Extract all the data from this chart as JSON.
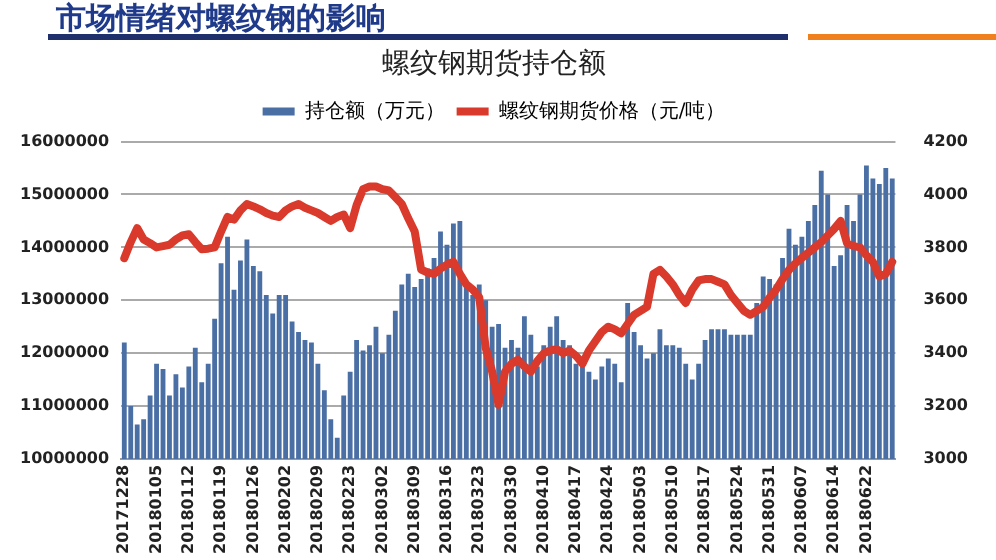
{
  "chart_data": {
    "type": "bar",
    "title": "螺纹钢期货持仓额",
    "annotations": [
      "市场情绪对螺纹钢的影响"
    ],
    "categories": [
      "20171228",
      null,
      null,
      null,
      null,
      "20180105",
      null,
      null,
      null,
      null,
      "20180112",
      null,
      null,
      null,
      null,
      "20180119",
      null,
      null,
      null,
      null,
      "20180126",
      null,
      null,
      null,
      null,
      "20180202",
      null,
      null,
      null,
      null,
      "20180209",
      null,
      null,
      null,
      null,
      "20180223",
      null,
      null,
      null,
      null,
      "20180302",
      null,
      null,
      null,
      null,
      "20180309",
      null,
      null,
      null,
      null,
      "20180316",
      null,
      null,
      null,
      null,
      "20180323",
      null,
      null,
      null,
      null,
      "20180330",
      null,
      null,
      null,
      null,
      "20180410",
      null,
      null,
      null,
      null,
      "20180417",
      null,
      null,
      null,
      null,
      "20180424",
      null,
      null,
      null,
      null,
      "20180503",
      null,
      null,
      null,
      null,
      "20180510",
      null,
      null,
      null,
      null,
      "20180517",
      null,
      null,
      null,
      null,
      "20180524",
      null,
      null,
      null,
      null,
      "20180531",
      null,
      null,
      null,
      null,
      "20180607",
      null,
      null,
      null,
      null,
      "20180614",
      null,
      null,
      null,
      null,
      "20180622",
      null,
      null,
      null,
      null
    ],
    "series": [
      {
        "name": "持仓额（万元）",
        "color": "#4a6fa5",
        "values": [
          12200000,
          11000000,
          10650000,
          10750000,
          11200000,
          11800000,
          11700000,
          11200000,
          11600000,
          11350000,
          11750000,
          12100000,
          11450000,
          11800000,
          12650000,
          13700000,
          14200000,
          13200000,
          13750000,
          14150000,
          13650000,
          13550000,
          13100000,
          12750000,
          13100000,
          13100000,
          12600000,
          12400000,
          12250000,
          12200000,
          11800000,
          11300000,
          10750000,
          10400000,
          11200000,
          11650000,
          12250000,
          12050000,
          12150000,
          12500000,
          12000000,
          12350000,
          12800000,
          13300000,
          13500000,
          13250000,
          13400000,
          13600000,
          13800000,
          14300000,
          14050000,
          14450000,
          14500000,
          13300000,
          13100000,
          13300000,
          13000000,
          12500000,
          12550000,
          12100000,
          12250000,
          12100000,
          12700000,
          12350000,
          11750000,
          12150000,
          12500000,
          12700000,
          12250000,
          12150000,
          11800000,
          11800000,
          11650000,
          11500000,
          11750000,
          11900000,
          11800000,
          11450000,
          12950000,
          12400000,
          12150000,
          11900000,
          12000000,
          12450000,
          12150000,
          12150000,
          12100000,
          11800000,
          11500000,
          11800000,
          12250000,
          12450000,
          12450000,
          12450000,
          12350000,
          12350000,
          12350000,
          12350000,
          12950000,
          13450000,
          13400000,
          13300000,
          13800000,
          14350000,
          14050000,
          14200000,
          14500000,
          14800000,
          15450000,
          15000000,
          13650000,
          13850000,
          14800000,
          14500000,
          15000000,
          15550000,
          15300000,
          15200000,
          15500000,
          15300000
        ]
      },
      {
        "name": "螺纹钢期货价格（元/吨）",
        "type": "line",
        "axis": "y2",
        "color": "#d93a2b",
        "values": [
          3759,
          3820,
          3873,
          3830,
          3816,
          3800,
          3805,
          3810,
          3830,
          3845,
          3850,
          3820,
          3793,
          3795,
          3800,
          3860,
          3915,
          3905,
          3940,
          3964,
          3955,
          3944,
          3930,
          3920,
          3915,
          3940,
          3955,
          3964,
          3950,
          3940,
          3930,
          3915,
          3900,
          3915,
          3924,
          3873,
          3960,
          4020,
          4030,
          4030,
          4020,
          4015,
          3990,
          3964,
          3910,
          3860,
          3716,
          3705,
          3700,
          3720,
          3735,
          3745,
          3700,
          3660,
          3640,
          3611,
          3420,
          3330,
          3205,
          3330,
          3360,
          3375,
          3350,
          3330,
          3370,
          3400,
          3410,
          3415,
          3400,
          3410,
          3390,
          3360,
          3410,
          3445,
          3480,
          3500,
          3490,
          3475,
          3510,
          3545,
          3560,
          3575,
          3700,
          3715,
          3690,
          3660,
          3620,
          3590,
          3640,
          3675,
          3680,
          3680,
          3670,
          3660,
          3620,
          3590,
          3560,
          3545,
          3560,
          3575,
          3610,
          3640,
          3680,
          3715,
          3740,
          3760,
          3780,
          3800,
          3820,
          3845,
          3870,
          3900,
          3815,
          3805,
          3800,
          3770,
          3745,
          3690,
          3700,
          3745
        ]
      }
    ],
    "ylim": [
      10000000,
      16000000
    ],
    "yticks": [
      10000000,
      11000000,
      12000000,
      13000000,
      14000000,
      15000000,
      16000000
    ],
    "y2lim": [
      3000,
      4200
    ],
    "y2ticks": [
      3000,
      3200,
      3400,
      3600,
      3800,
      4000,
      4200
    ],
    "grid": "y",
    "legend": "top"
  }
}
